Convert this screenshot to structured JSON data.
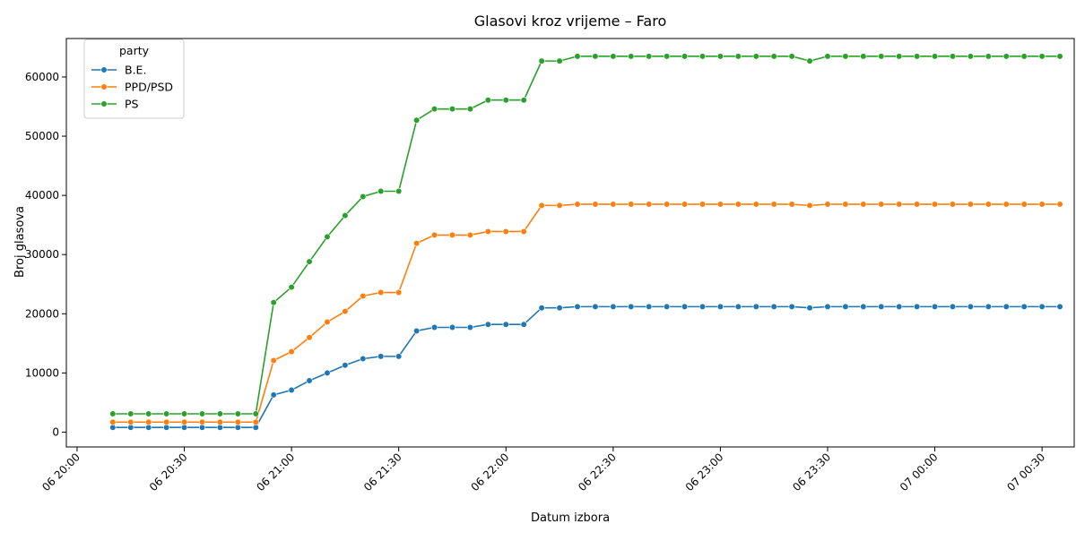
{
  "chart_data": {
    "type": "line",
    "title": "Glasovi kroz vrijeme – Faro",
    "xlabel": "Datum izbora",
    "ylabel": "Broj glasova",
    "x_axis": {
      "type": "time",
      "unit": "minutes-of-day",
      "min": "06 19:57",
      "max": "07 00:39",
      "tick_labels": [
        "06 20:00",
        "06 20:30",
        "06 21:00",
        "06 21:30",
        "06 22:00",
        "06 22:30",
        "06 23:00",
        "06 23:30",
        "07 00:00",
        "07 00:30"
      ],
      "tick_rotation": 45
    },
    "y_axis": {
      "min": -2500,
      "max": 66500,
      "ticks": [
        0,
        10000,
        20000,
        30000,
        40000,
        50000,
        60000
      ],
      "tick_labels": [
        "0",
        "10000",
        "20000",
        "30000",
        "40000",
        "50000",
        "60000"
      ]
    },
    "legend": {
      "title": "party",
      "position": "top-left"
    },
    "grid": false,
    "x": [
      "06 20:10",
      "06 20:15",
      "06 20:20",
      "06 20:25",
      "06 20:30",
      "06 20:35",
      "06 20:40",
      "06 20:45",
      "06 20:50",
      "06 20:55",
      "06 21:00",
      "06 21:05",
      "06 21:10",
      "06 21:15",
      "06 21:20",
      "06 21:25",
      "06 21:30",
      "06 21:35",
      "06 21:40",
      "06 21:45",
      "06 21:50",
      "06 21:55",
      "06 22:00",
      "06 22:05",
      "06 22:10",
      "06 22:15",
      "06 22:20",
      "06 22:25",
      "06 22:30",
      "06 22:35",
      "06 22:40",
      "06 22:45",
      "06 22:50",
      "06 22:55",
      "06 23:00",
      "06 23:05",
      "06 23:10",
      "06 23:15",
      "06 23:20",
      "06 23:25",
      "06 23:30",
      "06 23:35",
      "06 23:40",
      "06 23:45",
      "06 23:50",
      "06 23:55",
      "07 00:00",
      "07 00:05",
      "07 00:10",
      "07 00:15",
      "07 00:20",
      "07 00:25",
      "07 00:30",
      "07 00:35"
    ],
    "series": [
      {
        "name": "B.E.",
        "color": "#1f77b4",
        "values": [
          800,
          800,
          800,
          800,
          800,
          800,
          800,
          800,
          800,
          6300,
          7100,
          8700,
          10000,
          11300,
          12400,
          12800,
          12800,
          17100,
          17700,
          17700,
          17700,
          18200,
          18200,
          18200,
          21000,
          21000,
          21200,
          21200,
          21200,
          21200,
          21200,
          21200,
          21200,
          21200,
          21200,
          21200,
          21200,
          21200,
          21200,
          21000,
          21200,
          21200,
          21200,
          21200,
          21200,
          21200,
          21200,
          21200,
          21200,
          21200,
          21200,
          21200,
          21200,
          21200
        ]
      },
      {
        "name": "PPD/PSD",
        "color": "#ff7f0e",
        "values": [
          1700,
          1700,
          1700,
          1700,
          1700,
          1700,
          1700,
          1700,
          1700,
          12100,
          13600,
          16000,
          18600,
          20400,
          23000,
          23600,
          23600,
          31900,
          33300,
          33300,
          33300,
          33900,
          33900,
          33900,
          38300,
          38300,
          38500,
          38500,
          38500,
          38500,
          38500,
          38500,
          38500,
          38500,
          38500,
          38500,
          38500,
          38500,
          38500,
          38300,
          38500,
          38500,
          38500,
          38500,
          38500,
          38500,
          38500,
          38500,
          38500,
          38500,
          38500,
          38500,
          38500,
          38500
        ]
      },
      {
        "name": "PS",
        "color": "#2ca02c",
        "values": [
          3100,
          3100,
          3100,
          3100,
          3100,
          3100,
          3100,
          3100,
          3100,
          21900,
          24500,
          28800,
          33000,
          36600,
          39800,
          40700,
          40700,
          52700,
          54600,
          54600,
          54600,
          56100,
          56100,
          56100,
          62700,
          62700,
          63500,
          63500,
          63500,
          63500,
          63500,
          63500,
          63500,
          63500,
          63500,
          63500,
          63500,
          63500,
          63500,
          62700,
          63500,
          63500,
          63500,
          63500,
          63500,
          63500,
          63500,
          63500,
          63500,
          63500,
          63500,
          63500,
          63500,
          63500
        ]
      }
    ]
  }
}
